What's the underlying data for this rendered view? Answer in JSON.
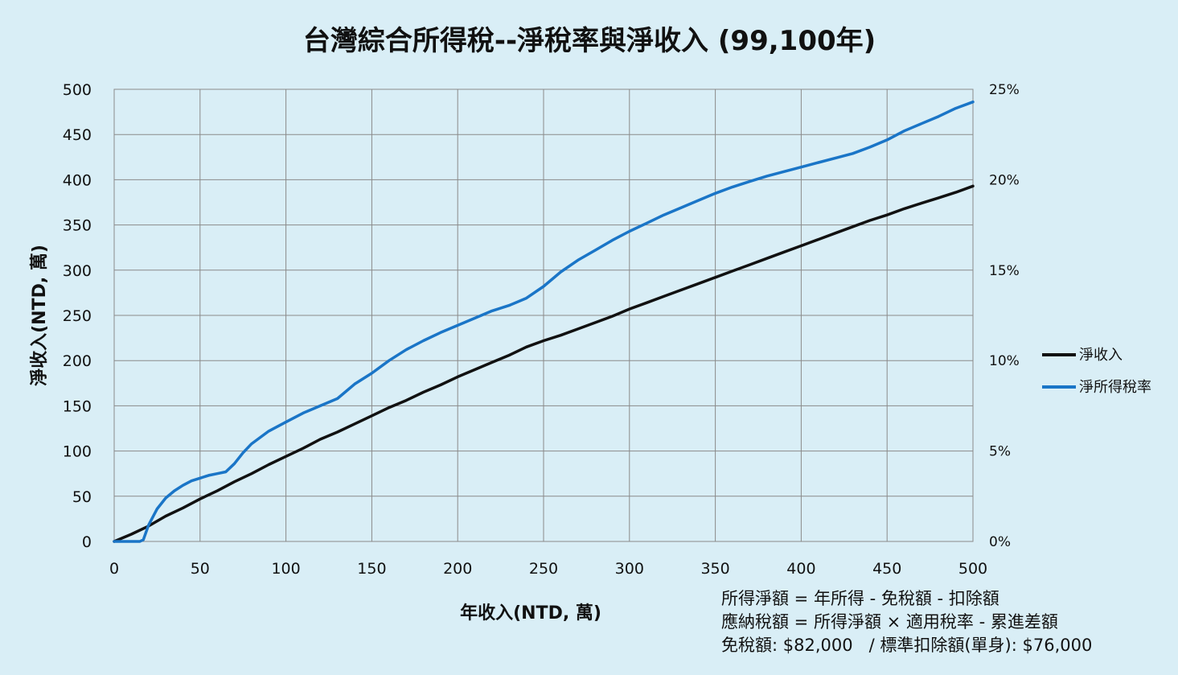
{
  "chart_data": {
    "type": "line",
    "title": "台灣綜合所得稅--淨稅率與淨收入 (99,100年)",
    "xlabel": "年收入(NTD, 萬)",
    "ylabel": "淨收入(NTD, 萬)",
    "xlim": [
      0,
      500
    ],
    "ylim": [
      0,
      500
    ],
    "y2lim": [
      0,
      25
    ],
    "x_ticks": [
      "0",
      "50",
      "100",
      "150",
      "200",
      "250",
      "300",
      "350",
      "400",
      "450",
      "500"
    ],
    "y_ticks": [
      "0",
      "50",
      "100",
      "150",
      "200",
      "250",
      "300",
      "350",
      "400",
      "450",
      "500"
    ],
    "y2_ticks": [
      "0%",
      "5%",
      "10%",
      "15%",
      "20%",
      "25%"
    ],
    "grid": true,
    "legend_position": "right",
    "series": [
      {
        "name": "淨收入",
        "axis": "left",
        "color": "#111111",
        "x": [
          0,
          10,
          20,
          30,
          40,
          50,
          60,
          70,
          80,
          90,
          100,
          110,
          120,
          130,
          140,
          150,
          160,
          170,
          180,
          190,
          200,
          210,
          220,
          230,
          240,
          250,
          260,
          270,
          280,
          290,
          300,
          310,
          320,
          330,
          340,
          350,
          360,
          370,
          380,
          390,
          400,
          410,
          420,
          430,
          440,
          450,
          460,
          470,
          480,
          490,
          500
        ],
        "y": [
          0,
          8,
          17,
          28,
          37,
          47,
          56,
          66,
          75,
          85,
          94,
          103,
          113,
          121,
          130,
          139,
          148,
          156,
          165,
          173,
          182,
          190,
          198,
          206,
          215,
          222,
          228,
          235,
          242,
          249,
          257,
          264,
          271,
          278,
          285,
          292,
          299,
          306,
          313,
          320,
          327,
          334,
          341,
          348,
          355,
          361,
          368,
          374,
          380,
          386,
          393
        ]
      },
      {
        "name": "淨所得稅率",
        "axis": "right",
        "color": "#1a75c7",
        "x": [
          0,
          15,
          17,
          20,
          25,
          30,
          35,
          40,
          45,
          50,
          55,
          60,
          65,
          70,
          75,
          80,
          90,
          100,
          110,
          120,
          130,
          135,
          140,
          150,
          160,
          170,
          180,
          190,
          200,
          210,
          220,
          230,
          240,
          250,
          260,
          270,
          280,
          290,
          300,
          310,
          320,
          330,
          340,
          350,
          360,
          370,
          380,
          390,
          400,
          410,
          420,
          430,
          440,
          450,
          460,
          470,
          480,
          490,
          500
        ],
        "y": [
          0,
          0,
          0.1,
          0.9,
          1.8,
          2.4,
          2.8,
          3.1,
          3.35,
          3.5,
          3.65,
          3.75,
          3.85,
          4.3,
          4.9,
          5.4,
          6.1,
          6.6,
          7.1,
          7.5,
          7.9,
          8.3,
          8.7,
          9.3,
          10.0,
          10.6,
          11.1,
          11.55,
          11.95,
          12.35,
          12.75,
          13.05,
          13.45,
          14.1,
          14.9,
          15.55,
          16.1,
          16.65,
          17.15,
          17.6,
          18.05,
          18.45,
          18.85,
          19.25,
          19.6,
          19.9,
          20.2,
          20.45,
          20.7,
          20.95,
          21.2,
          21.45,
          21.8,
          22.2,
          22.7,
          23.1,
          23.5,
          23.95,
          24.3
        ]
      }
    ]
  },
  "notes": [
    "所得淨額 = 年所得 - 免稅額 - 扣除額",
    "應納稅額 = 所得淨額 × 適用稅率 - 累進差額",
    "免稅額: $82,000   / 標準扣除額(單身): $76,000"
  ]
}
